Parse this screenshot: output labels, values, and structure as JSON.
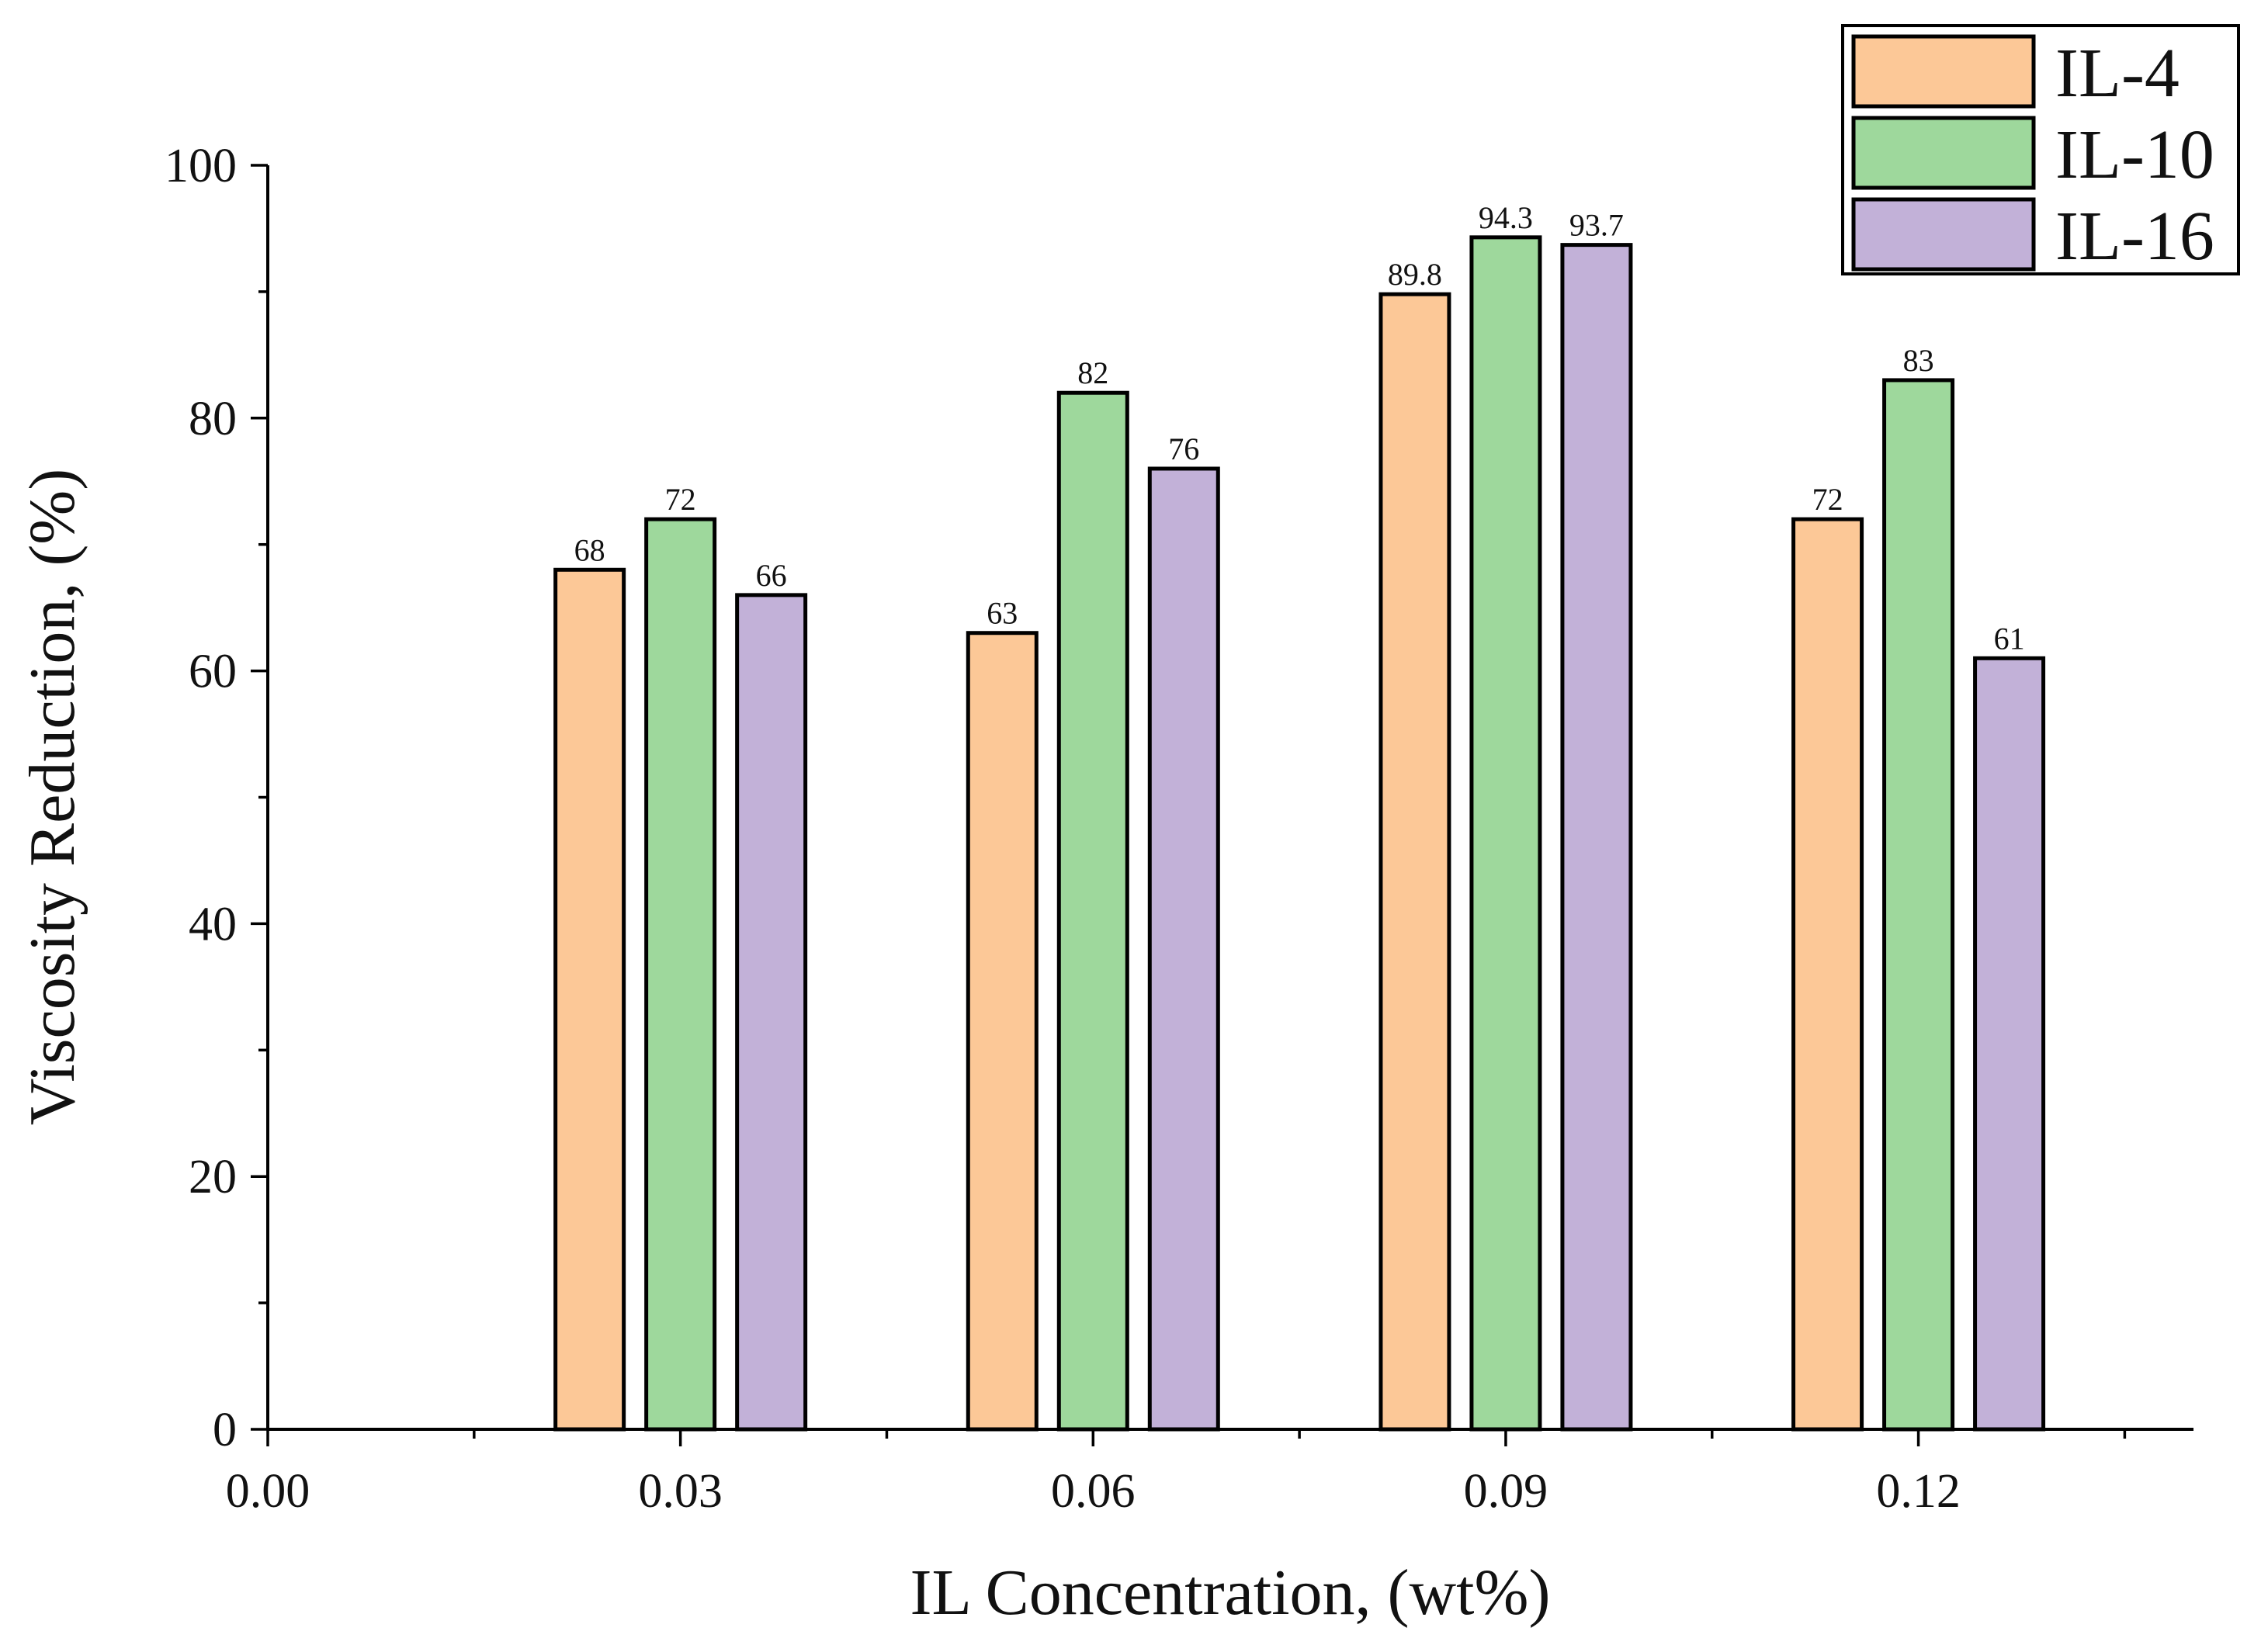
{
  "chart_data": {
    "type": "bar",
    "title": "",
    "xlabel": "IL Concentration, (wt%)",
    "ylabel": "Viscosity Reduction, (%)",
    "x_ticks": [
      "0.00",
      "0.03",
      "0.06",
      "0.09",
      "0.12"
    ],
    "x_tick_values": [
      0.0,
      0.03,
      0.06,
      0.09,
      0.12
    ],
    "xlim": [
      0.0,
      0.14
    ],
    "y_ticks": [
      "0",
      "20",
      "40",
      "60",
      "80",
      "100"
    ],
    "ylim": [
      0,
      100
    ],
    "categories": [
      "0.03",
      "0.06",
      "0.09",
      "0.12"
    ],
    "category_values": [
      0.03,
      0.06,
      0.09,
      0.12
    ],
    "series": [
      {
        "name": "IL-4",
        "color": "#FCC897",
        "values": [
          68,
          63,
          89.8,
          72
        ],
        "labels": [
          "68",
          "63",
          "89.8",
          "72"
        ]
      },
      {
        "name": "IL-10",
        "color": "#9ED89C",
        "values": [
          72,
          82,
          94.3,
          83
        ],
        "labels": [
          "72",
          "82",
          "94.3",
          "83"
        ]
      },
      {
        "name": "IL-16",
        "color": "#C2B1D8",
        "values": [
          66,
          76,
          93.7,
          61
        ],
        "labels": [
          "66",
          "76",
          "93.7",
          "61"
        ]
      }
    ],
    "legend_position": "top-right",
    "grid": false
  }
}
